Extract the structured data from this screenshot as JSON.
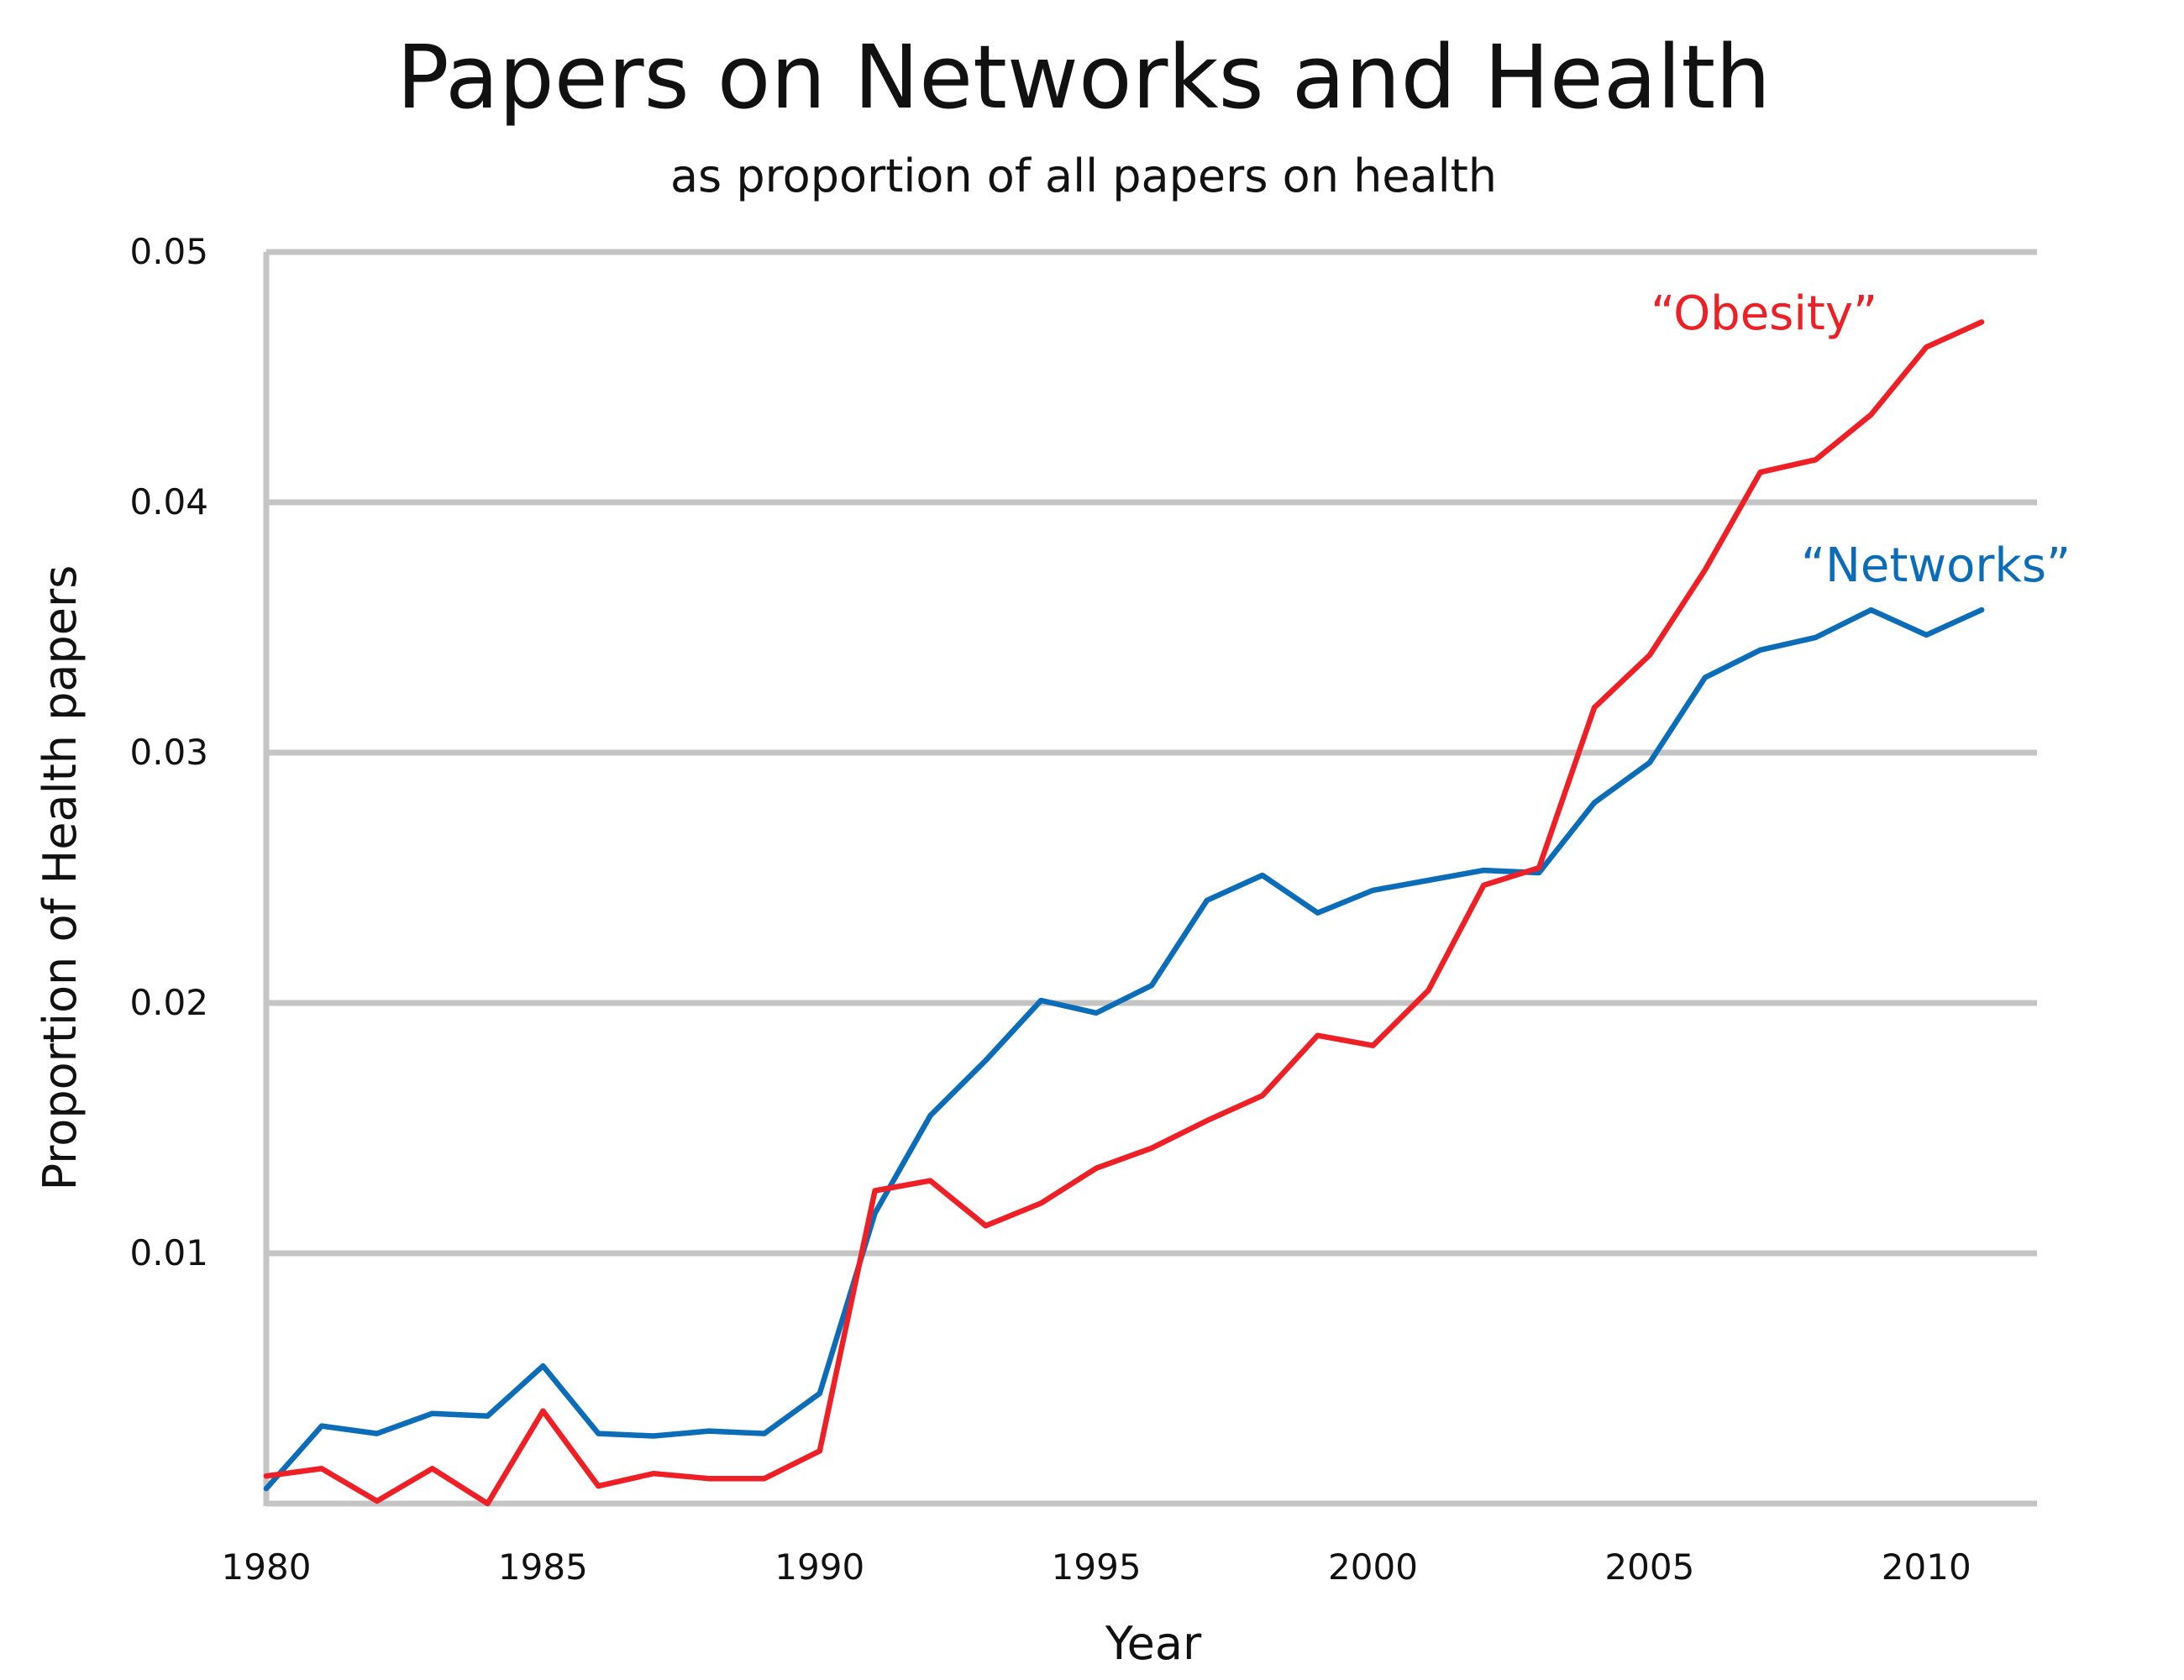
{
  "chart_data": {
    "type": "line",
    "title": "Papers on Networks and Health",
    "subtitle": "as proportion of all papers on health",
    "xlabel": "Year",
    "ylabel": "Proportion of Health papers",
    "xlim": [
      1980,
      2012
    ],
    "ylim": [
      0,
      0.05
    ],
    "x_ticks": [
      1980,
      1985,
      1990,
      1995,
      2000,
      2005,
      2010
    ],
    "x_tick_labels": [
      "1980",
      "1985",
      "1990",
      "1995",
      "2000",
      "2005",
      "2010"
    ],
    "y_ticks": [
      0.01,
      0.02,
      0.03,
      0.04,
      0.05
    ],
    "y_tick_labels": [
      "0.01",
      "0.02",
      "0.03",
      "0.04",
      "0.05"
    ],
    "grid": "horizontal",
    "grid_color": "#c4c4c4",
    "x": [
      1980,
      1981,
      1982,
      1983,
      1984,
      1985,
      1986,
      1987,
      1988,
      1989,
      1990,
      1991,
      1992,
      1993,
      1994,
      1995,
      1996,
      1997,
      1998,
      1999,
      2000,
      2001,
      2002,
      2003,
      2004,
      2005,
      2006,
      2007,
      2008,
      2009,
      2010,
      2011
    ],
    "series": [
      {
        "name": "“Networks”",
        "color": "#0b6db7",
        "values": [
          0.0006,
          0.0031,
          0.0028,
          0.0036,
          0.0035,
          0.0055,
          0.0028,
          0.0027,
          0.0029,
          0.0028,
          0.0044,
          0.0116,
          0.0155,
          0.0177,
          0.0201,
          0.0196,
          0.0207,
          0.0241,
          0.0251,
          0.0236,
          0.0245,
          0.0249,
          0.0253,
          0.0252,
          0.028,
          0.0296,
          0.033,
          0.0341,
          0.0346,
          0.0357,
          0.0347,
          0.0357
        ]
      },
      {
        "name": "“Obesity”",
        "color": "#ee1f25",
        "values": [
          0.0011,
          0.0014,
          0.0001,
          0.0014,
          0.0,
          0.0037,
          0.0007,
          0.0012,
          0.001,
          0.001,
          0.0021,
          0.0125,
          0.0129,
          0.0111,
          0.012,
          0.0134,
          0.0142,
          0.0153,
          0.0163,
          0.0187,
          0.0183,
          0.0205,
          0.0247,
          0.0254,
          0.0318,
          0.0339,
          0.0373,
          0.0412,
          0.0417,
          0.0435,
          0.0462,
          0.0472
        ]
      }
    ]
  }
}
